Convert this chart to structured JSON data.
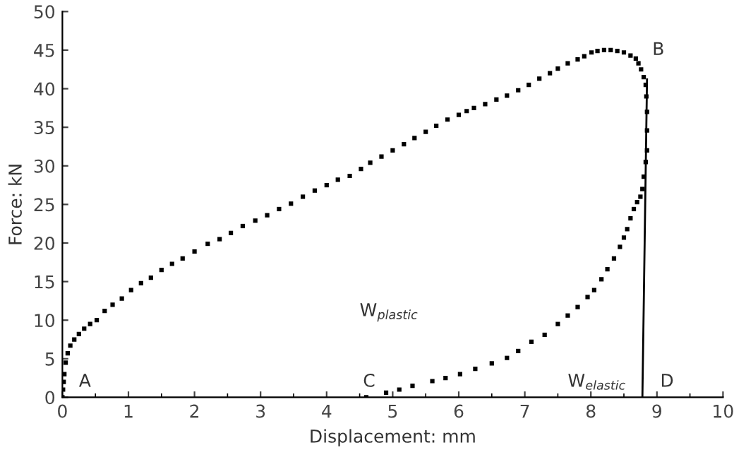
{
  "chart_data": {
    "type": "scatter",
    "xlabel": "Displacement: mm",
    "ylabel": "Force: kN",
    "xlim": [
      0,
      10
    ],
    "ylim": [
      0,
      50
    ],
    "xticks": [
      0,
      {
        "value": 0.5,
        "label": null
      },
      1,
      {
        "value": 1.5,
        "label": null
      },
      2,
      {
        "value": 2.5,
        "label": null
      },
      3,
      {
        "value": 3.5,
        "label": null
      },
      4,
      {
        "value": 4.5,
        "label": null
      },
      5,
      {
        "value": 5.5,
        "label": null
      },
      6,
      {
        "value": 6.5,
        "label": null
      },
      7,
      {
        "value": 7.5,
        "label": null
      },
      8,
      {
        "value": 8.5,
        "label": null
      },
      9,
      {
        "value": 9.5,
        "label": null
      },
      10
    ],
    "yticks": [
      0,
      5,
      10,
      15,
      20,
      25,
      30,
      35,
      40,
      45,
      50
    ],
    "grid": false,
    "legend": false,
    "marker": "square",
    "series": [
      {
        "color": "#000000",
        "x": [
          0,
          0.01,
          0.02,
          0.03,
          0.05,
          0.08,
          0.12,
          0.18,
          0.25,
          0.33,
          0.42,
          0.52,
          0.64,
          0.76,
          0.9,
          1.04,
          1.19,
          1.34,
          1.5,
          1.66,
          1.82,
          2.0,
          2.2,
          2.38,
          2.55,
          2.73,
          2.92,
          3.1,
          3.28,
          3.46,
          3.64,
          3.82,
          4.0,
          4.17,
          4.35,
          4.52,
          4.66,
          4.83,
          5.0,
          5.17,
          5.33,
          5.5,
          5.66,
          5.83,
          6.0,
          6.12,
          6.23,
          6.4,
          6.57,
          6.73,
          6.9,
          7.06,
          7.22,
          7.38,
          7.5,
          7.65,
          7.8,
          7.9,
          8.01,
          8.1,
          8.2,
          8.3,
          8.4,
          8.5,
          8.6,
          8.68,
          8.72,
          8.76,
          8.8,
          8.83,
          8.84,
          8.85,
          8.85,
          8.85,
          8.83,
          8.8,
          8.78,
          8.75,
          8.7,
          8.65,
          8.6,
          8.55,
          8.5,
          8.44,
          8.35,
          8.25,
          8.16,
          8.05,
          7.95,
          7.8,
          7.65,
          7.5,
          7.3,
          7.1,
          6.9,
          6.73,
          6.5,
          6.25,
          6.02,
          5.8,
          5.6,
          5.3,
          5.1,
          4.9,
          4.6
        ],
        "values": [
          0,
          1,
          2,
          3,
          4.5,
          5.7,
          6.7,
          7.5,
          8.2,
          8.9,
          9.5,
          10,
          11.2,
          12,
          12.8,
          13.9,
          14.8,
          15.5,
          16.5,
          17.3,
          18,
          18.9,
          19.9,
          20.5,
          21.3,
          22.2,
          22.9,
          23.6,
          24.4,
          25.1,
          26,
          26.8,
          27.5,
          28.2,
          28.7,
          29.6,
          30.4,
          31.2,
          32.0,
          32.8,
          33.6,
          34.4,
          35.2,
          36.0,
          36.6,
          37.1,
          37.5,
          38.0,
          38.6,
          39.1,
          39.8,
          40.5,
          41.3,
          42.0,
          42.6,
          43.3,
          43.8,
          44.2,
          44.7,
          44.9,
          45.0,
          45.0,
          44.9,
          44.7,
          44.3,
          43.9,
          43.3,
          42.5,
          41.5,
          40.5,
          39,
          37,
          34.6,
          32,
          30.5,
          28.6,
          27,
          26,
          25.3,
          24.4,
          23.2,
          21.8,
          20.7,
          19.5,
          18,
          16.6,
          15.3,
          13.9,
          13,
          11.7,
          10.6,
          9.5,
          8.1,
          7.2,
          6.0,
          5.1,
          4.4,
          3.7,
          3.0,
          2.5,
          2.1,
          1.5,
          1.0,
          0.6,
          0
        ]
      },
      {
        "type": "line",
        "color": "#000000",
        "marker": "none",
        "line_style": "solid",
        "x": [
          8.85,
          8.78
        ],
        "values": [
          41.2,
          0
        ]
      }
    ],
    "annotations": [
      "A",
      "B",
      "C",
      "D",
      "W$_{plastic}$",
      "W$_{elastic}$"
    ]
  }
}
